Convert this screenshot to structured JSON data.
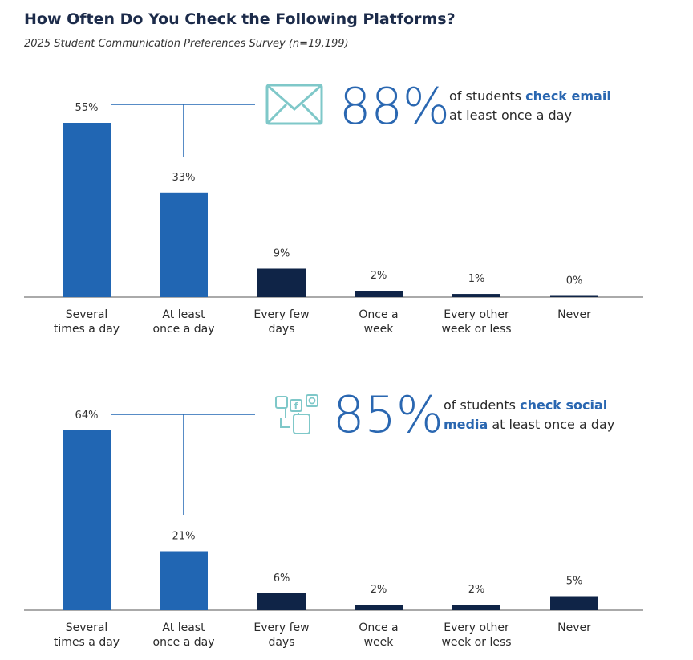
{
  "title": "How Often Do You Check the Following Platforms?",
  "subtitle": "2025 Student Communication Preferences Survey (n=19,199)",
  "colors": {
    "light_bar": "#2166b3",
    "dark_bar": "#0f2447",
    "connector": "#2166b3",
    "icon": "#7fc8c9",
    "big_number": "#2a67b1"
  },
  "chart_data": [
    {
      "type": "bar",
      "categories": [
        [
          "Several",
          "times a day"
        ],
        [
          "At least",
          "once a day"
        ],
        [
          "Every few",
          "days"
        ],
        [
          "Once a",
          "week"
        ],
        [
          "Every other",
          "week or less"
        ],
        [
          "Never"
        ]
      ],
      "values": [
        55,
        33,
        9,
        2,
        1,
        0
      ],
      "value_labels": [
        "55%",
        "33%",
        "9%",
        "2%",
        "1%",
        "0%"
      ],
      "ylim": [
        0,
        60
      ],
      "callout": {
        "icon": "envelope-icon",
        "percent": "88%",
        "line1_pre": "of students ",
        "line1_bold": "check email",
        "line2_bold": "",
        "line2_post": "at least once a day"
      }
    },
    {
      "type": "bar",
      "categories": [
        [
          "Several",
          "times a day"
        ],
        [
          "At least",
          "once a day"
        ],
        [
          "Every few",
          "days"
        ],
        [
          "Once a",
          "week"
        ],
        [
          "Every other",
          "week or less"
        ],
        [
          "Never"
        ]
      ],
      "values": [
        64,
        21,
        6,
        2,
        2,
        5
      ],
      "value_labels": [
        "64%",
        "21%",
        "6%",
        "2%",
        "2%",
        "5%"
      ],
      "ylim": [
        0,
        70
      ],
      "callout": {
        "icon": "social-media-icon",
        "percent": "85%",
        "line1_pre": "of students ",
        "line1_bold": "check social",
        "line2_bold": "media",
        "line2_post": " at least once a day"
      }
    }
  ]
}
